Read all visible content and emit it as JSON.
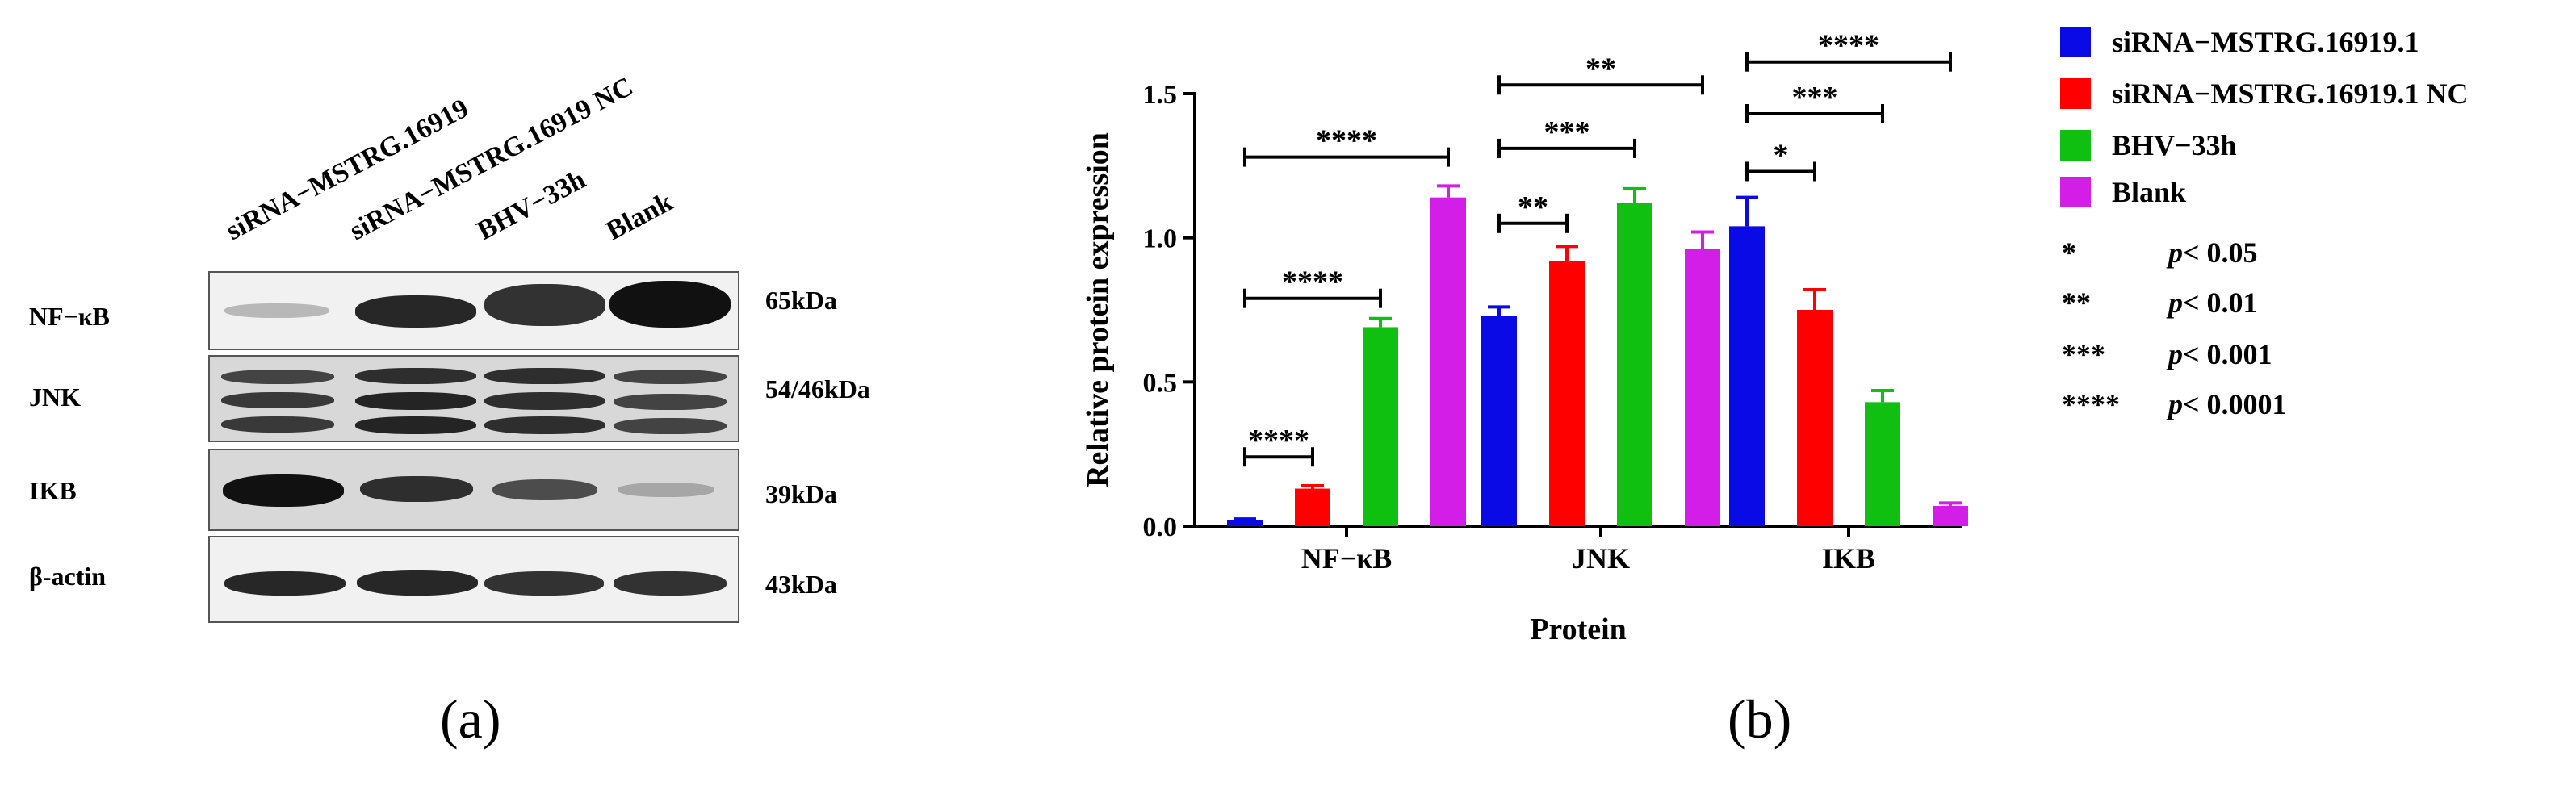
{
  "panel_a": {
    "letter": "(a)",
    "lanes": [
      "siRNA−MSTRG.16919",
      "siRNA−MSTRG.16919 NC",
      "BHV−33h",
      "Blank"
    ],
    "blots": [
      {
        "protein": "NF−κB",
        "mw": "65kDa"
      },
      {
        "protein": "JNK",
        "mw": "54/46kDa"
      },
      {
        "protein": "IKB",
        "mw": "39kDa"
      },
      {
        "protein": "β-actin",
        "mw": "43kDa"
      }
    ]
  },
  "panel_b": {
    "letter": "(b)",
    "legend": [
      {
        "label": "siRNA−MSTRG.16919.1",
        "color": "#0a0ae6"
      },
      {
        "label": "siRNA−MSTRG.16919.1 NC",
        "color": "#ff0000"
      },
      {
        "label": "BHV−33h",
        "color": "#10c010"
      },
      {
        "label": "Blank",
        "color": "#d21ee6"
      }
    ],
    "significance_key": [
      {
        "stars": "*",
        "p_label": "p",
        "threshold": "< 0.05"
      },
      {
        "stars": "**",
        "p_label": "p",
        "threshold": "< 0.01"
      },
      {
        "stars": "***",
        "p_label": "p",
        "threshold": "< 0.001"
      },
      {
        "stars": "****",
        "p_label": "p",
        "threshold": "< 0.0001"
      }
    ]
  },
  "chart_data": {
    "type": "bar",
    "title": "",
    "xlabel": "Protein",
    "ylabel": "Relative protein expression",
    "ylim": [
      0,
      1.5
    ],
    "yticks": [
      0.0,
      0.5,
      1.0,
      1.5
    ],
    "ytick_labels": [
      "0.0",
      "0.5",
      "1.0",
      "1.5"
    ],
    "categories": [
      "NF−κB",
      "JNK",
      "IKB"
    ],
    "series": [
      {
        "name": "siRNA−MSTRG.16919.1",
        "color": "#0a0ae6",
        "values": [
          0.02,
          0.73,
          1.04
        ],
        "errors": [
          0.005,
          0.03,
          0.1
        ]
      },
      {
        "name": "siRNA−MSTRG.16919.1 NC",
        "color": "#ff0000",
        "values": [
          0.13,
          0.92,
          0.75
        ],
        "errors": [
          0.01,
          0.05,
          0.07
        ]
      },
      {
        "name": "BHV−33h",
        "color": "#10c010",
        "values": [
          0.69,
          1.12,
          0.43
        ],
        "errors": [
          0.03,
          0.05,
          0.04
        ]
      },
      {
        "name": "Blank",
        "color": "#d21ee6",
        "values": [
          1.14,
          0.96,
          0.07
        ],
        "errors": [
          0.04,
          0.06,
          0.01
        ]
      }
    ],
    "significance_brackets": [
      {
        "category": 0,
        "from": 0,
        "to": 1,
        "label": "****",
        "y": 0.24
      },
      {
        "category": 0,
        "from": 0,
        "to": 2,
        "label": "****",
        "y": 0.79
      },
      {
        "category": 0,
        "from": 0,
        "to": 3,
        "label": "****",
        "y": 1.28
      },
      {
        "category": 1,
        "from": 0,
        "to": 1,
        "label": "**",
        "y": 1.05
      },
      {
        "category": 1,
        "from": 0,
        "to": 2,
        "label": "***",
        "y": 1.31
      },
      {
        "category": 1,
        "from": 0,
        "to": 3,
        "label": "**",
        "y": 1.53
      },
      {
        "category": 2,
        "from": 0,
        "to": 1,
        "label": "*",
        "y": 1.23
      },
      {
        "category": 2,
        "from": 0,
        "to": 2,
        "label": "***",
        "y": 1.43
      },
      {
        "category": 2,
        "from": 0,
        "to": 3,
        "label": "****",
        "y": 1.61
      }
    ]
  }
}
